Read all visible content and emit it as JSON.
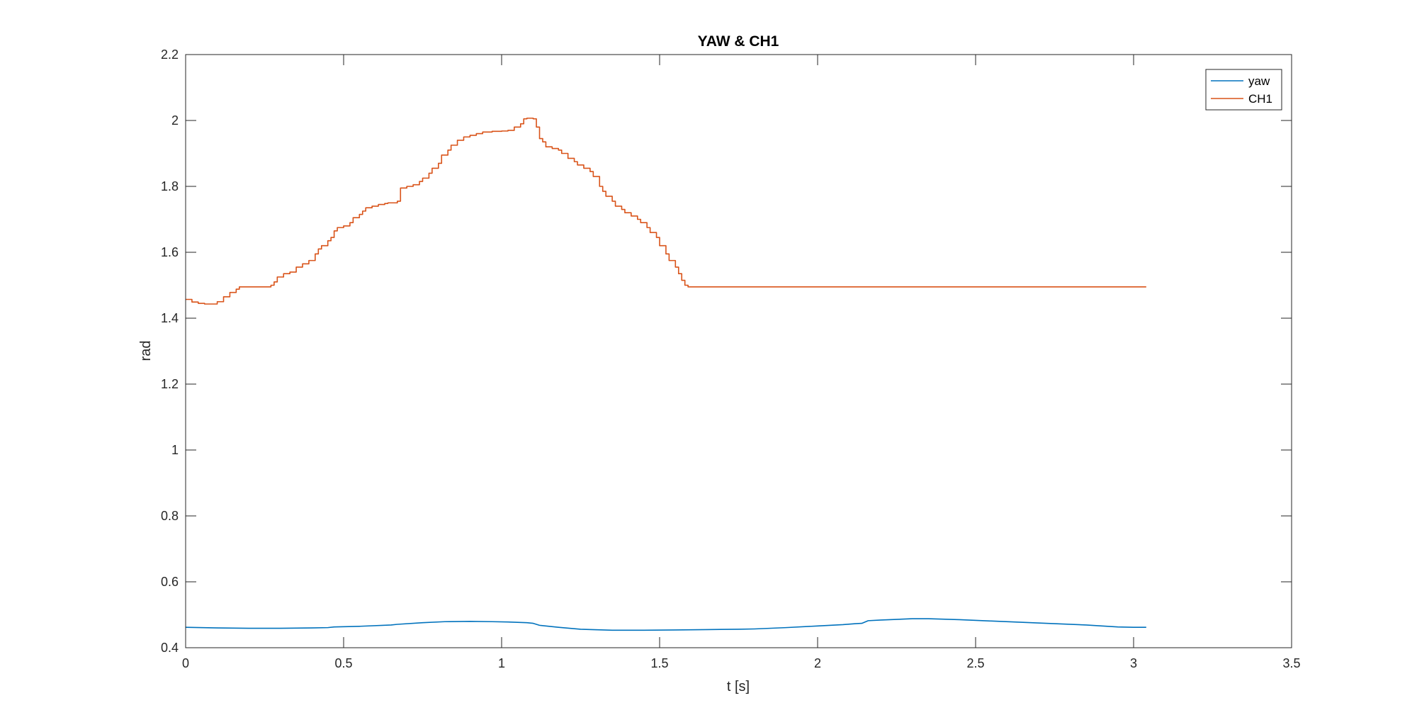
{
  "chart_data": {
    "type": "line",
    "title": "YAW & CH1",
    "xlabel": "t [s]",
    "ylabel": "rad",
    "xlim": [
      0,
      3.5
    ],
    "ylim": [
      0.4,
      2.2
    ],
    "xticks": [
      0,
      0.5,
      1,
      1.5,
      2,
      2.5,
      3,
      3.5
    ],
    "xtick_labels": [
      "0",
      "0.5",
      "1",
      "1.5",
      "2",
      "2.5",
      "3",
      "3.5"
    ],
    "yticks": [
      0.4,
      0.6,
      0.8,
      1,
      1.2,
      1.4,
      1.6,
      1.8,
      2,
      2.2
    ],
    "ytick_labels": [
      "0.4",
      "0.6",
      "0.8",
      "1",
      "1.2",
      "1.4",
      "1.6",
      "1.8",
      "2",
      "2.2"
    ],
    "grid": false,
    "legend_position": "top-right",
    "series": [
      {
        "name": "yaw",
        "color": "#0072BD",
        "step": false,
        "points": [
          [
            0,
            0.462
          ],
          [
            0.1,
            0.46
          ],
          [
            0.2,
            0.459
          ],
          [
            0.3,
            0.459
          ],
          [
            0.4,
            0.46
          ],
          [
            0.45,
            0.461
          ],
          [
            0.47,
            0.463
          ],
          [
            0.55,
            0.465
          ],
          [
            0.65,
            0.469
          ],
          [
            0.67,
            0.471
          ],
          [
            0.75,
            0.476
          ],
          [
            0.82,
            0.479
          ],
          [
            0.9,
            0.48
          ],
          [
            0.97,
            0.479
          ],
          [
            1.02,
            0.478
          ],
          [
            1.08,
            0.476
          ],
          [
            1.1,
            0.474
          ],
          [
            1.12,
            0.468
          ],
          [
            1.18,
            0.462
          ],
          [
            1.25,
            0.456
          ],
          [
            1.35,
            0.453
          ],
          [
            1.45,
            0.453
          ],
          [
            1.55,
            0.454
          ],
          [
            1.65,
            0.455
          ],
          [
            1.75,
            0.456
          ],
          [
            1.8,
            0.457
          ],
          [
            1.9,
            0.461
          ],
          [
            2.0,
            0.466
          ],
          [
            2.08,
            0.47
          ],
          [
            2.12,
            0.473
          ],
          [
            2.14,
            0.474
          ],
          [
            2.16,
            0.482
          ],
          [
            2.2,
            0.484
          ],
          [
            2.3,
            0.488
          ],
          [
            2.35,
            0.488
          ],
          [
            2.45,
            0.485
          ],
          [
            2.55,
            0.481
          ],
          [
            2.65,
            0.477
          ],
          [
            2.75,
            0.473
          ],
          [
            2.85,
            0.469
          ],
          [
            2.9,
            0.466
          ],
          [
            2.95,
            0.463
          ],
          [
            3.0,
            0.462
          ],
          [
            3.04,
            0.462
          ]
        ]
      },
      {
        "name": "CH1",
        "color": "#D95319",
        "step": true,
        "points": [
          [
            0,
            1.457
          ],
          [
            0.02,
            1.449
          ],
          [
            0.04,
            1.445
          ],
          [
            0.06,
            1.443
          ],
          [
            0.09,
            1.443
          ],
          [
            0.1,
            1.45
          ],
          [
            0.12,
            1.465
          ],
          [
            0.14,
            1.478
          ],
          [
            0.16,
            1.488
          ],
          [
            0.17,
            1.495
          ],
          [
            0.25,
            1.495
          ],
          [
            0.27,
            1.5
          ],
          [
            0.28,
            1.51
          ],
          [
            0.29,
            1.525
          ],
          [
            0.31,
            1.535
          ],
          [
            0.33,
            1.54
          ],
          [
            0.35,
            1.555
          ],
          [
            0.37,
            1.565
          ],
          [
            0.39,
            1.575
          ],
          [
            0.41,
            1.595
          ],
          [
            0.42,
            1.61
          ],
          [
            0.43,
            1.62
          ],
          [
            0.45,
            1.635
          ],
          [
            0.46,
            1.645
          ],
          [
            0.47,
            1.665
          ],
          [
            0.48,
            1.675
          ],
          [
            0.5,
            1.68
          ],
          [
            0.52,
            1.69
          ],
          [
            0.53,
            1.705
          ],
          [
            0.55,
            1.715
          ],
          [
            0.56,
            1.725
          ],
          [
            0.57,
            1.735
          ],
          [
            0.59,
            1.74
          ],
          [
            0.61,
            1.745
          ],
          [
            0.63,
            1.748
          ],
          [
            0.64,
            1.75
          ],
          [
            0.67,
            1.755
          ],
          [
            0.68,
            1.795
          ],
          [
            0.7,
            1.8
          ],
          [
            0.72,
            1.805
          ],
          [
            0.74,
            1.815
          ],
          [
            0.75,
            1.825
          ],
          [
            0.77,
            1.84
          ],
          [
            0.78,
            1.855
          ],
          [
            0.8,
            1.87
          ],
          [
            0.81,
            1.895
          ],
          [
            0.83,
            1.91
          ],
          [
            0.84,
            1.925
          ],
          [
            0.86,
            1.94
          ],
          [
            0.88,
            1.95
          ],
          [
            0.9,
            1.955
          ],
          [
            0.92,
            1.96
          ],
          [
            0.94,
            1.965
          ],
          [
            0.97,
            1.967
          ],
          [
            1.0,
            1.968
          ],
          [
            1.02,
            1.97
          ],
          [
            1.04,
            1.98
          ],
          [
            1.06,
            1.99
          ],
          [
            1.07,
            2.005
          ],
          [
            1.08,
            2.007
          ],
          [
            1.1,
            2.005
          ],
          [
            1.11,
            1.98
          ],
          [
            1.12,
            1.945
          ],
          [
            1.13,
            1.935
          ],
          [
            1.14,
            1.92
          ],
          [
            1.16,
            1.915
          ],
          [
            1.18,
            1.91
          ],
          [
            1.19,
            1.9
          ],
          [
            1.21,
            1.885
          ],
          [
            1.23,
            1.875
          ],
          [
            1.24,
            1.865
          ],
          [
            1.26,
            1.855
          ],
          [
            1.28,
            1.845
          ],
          [
            1.29,
            1.83
          ],
          [
            1.31,
            1.8
          ],
          [
            1.32,
            1.785
          ],
          [
            1.33,
            1.77
          ],
          [
            1.35,
            1.755
          ],
          [
            1.36,
            1.74
          ],
          [
            1.38,
            1.73
          ],
          [
            1.39,
            1.72
          ],
          [
            1.41,
            1.71
          ],
          [
            1.43,
            1.7
          ],
          [
            1.44,
            1.69
          ],
          [
            1.46,
            1.675
          ],
          [
            1.47,
            1.66
          ],
          [
            1.49,
            1.645
          ],
          [
            1.5,
            1.62
          ],
          [
            1.52,
            1.595
          ],
          [
            1.53,
            1.575
          ],
          [
            1.55,
            1.555
          ],
          [
            1.56,
            1.535
          ],
          [
            1.57,
            1.515
          ],
          [
            1.58,
            1.5
          ],
          [
            1.59,
            1.495
          ],
          [
            3.04,
            1.495
          ]
        ]
      }
    ]
  }
}
